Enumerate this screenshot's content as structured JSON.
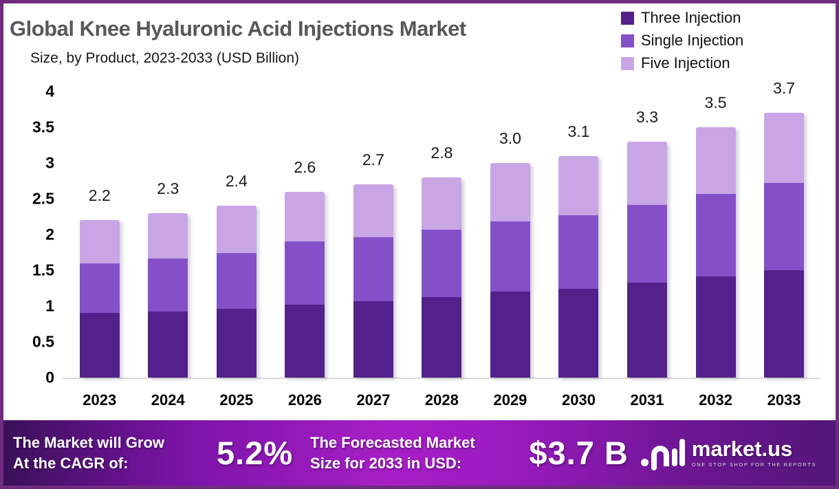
{
  "header": {
    "title": "Global Knee Hyaluronic Acid Injections Market",
    "subtitle": "Size, by Product, 2023-2033 (USD Billion)"
  },
  "legend": [
    {
      "label": "Three Injection",
      "color": "#53218c"
    },
    {
      "label": "Single Injection",
      "color": "#8450c8"
    },
    {
      "label": "Five Injection",
      "color": "#c9a5e6"
    }
  ],
  "chart_data": {
    "type": "bar",
    "stacked": true,
    "title": "Global Knee Hyaluronic Acid Injections Market Size, by Product, 2023-2033 (USD Billion)",
    "xlabel": "",
    "ylabel": "USD Billion",
    "ylim": [
      0,
      4
    ],
    "y_ticks": [
      "4",
      "3.5",
      "3",
      "2.5",
      "2",
      "1.5",
      "1",
      "0.5",
      "0"
    ],
    "grid": false,
    "legend_position": "top-right",
    "categories": [
      "2023",
      "2024",
      "2025",
      "2026",
      "2027",
      "2028",
      "2029",
      "2030",
      "2031",
      "2032",
      "2033"
    ],
    "series": [
      {
        "name": "Three Injection",
        "color": "#53218c",
        "values": [
          0.9,
          0.92,
          0.96,
          1.02,
          1.07,
          1.13,
          1.2,
          1.24,
          1.33,
          1.41,
          1.5
        ]
      },
      {
        "name": "Single Injection",
        "color": "#8450c8",
        "values": [
          0.7,
          0.74,
          0.78,
          0.88,
          0.89,
          0.94,
          0.98,
          1.03,
          1.08,
          1.16,
          1.22
        ]
      },
      {
        "name": "Five Injection",
        "color": "#c9a5e6",
        "values": [
          0.6,
          0.64,
          0.66,
          0.7,
          0.74,
          0.73,
          0.82,
          0.83,
          0.89,
          0.93,
          0.98
        ]
      }
    ],
    "totals_labels": [
      "2.2",
      "2.3",
      "2.4",
      "2.6",
      "2.7",
      "2.8",
      "3.0",
      "3.1",
      "3.3",
      "3.5",
      "3.7"
    ]
  },
  "footer": {
    "cagr": {
      "line1": "The Market will Grow",
      "line2": "At the CAGR of:",
      "value": "5.2%"
    },
    "forecast": {
      "line1": "The Forecasted Market",
      "line2": "Size for 2033 in USD:",
      "value": "$3.7 B"
    },
    "brand": {
      "name": "market.us",
      "tagline": "ONE STOP SHOP FOR THE REPORTS"
    },
    "gradient_stops": [
      [
        "0%",
        "#3a1059"
      ],
      [
        "22%",
        "#7c14a8"
      ],
      [
        "46%",
        "#a71fc6"
      ],
      [
        "60%",
        "#9c1bc0"
      ],
      [
        "82%",
        "#6d1694"
      ],
      [
        "100%",
        "#521677"
      ]
    ]
  },
  "frame_border_color": "#702c80",
  "axis_line_color": "#dadada"
}
